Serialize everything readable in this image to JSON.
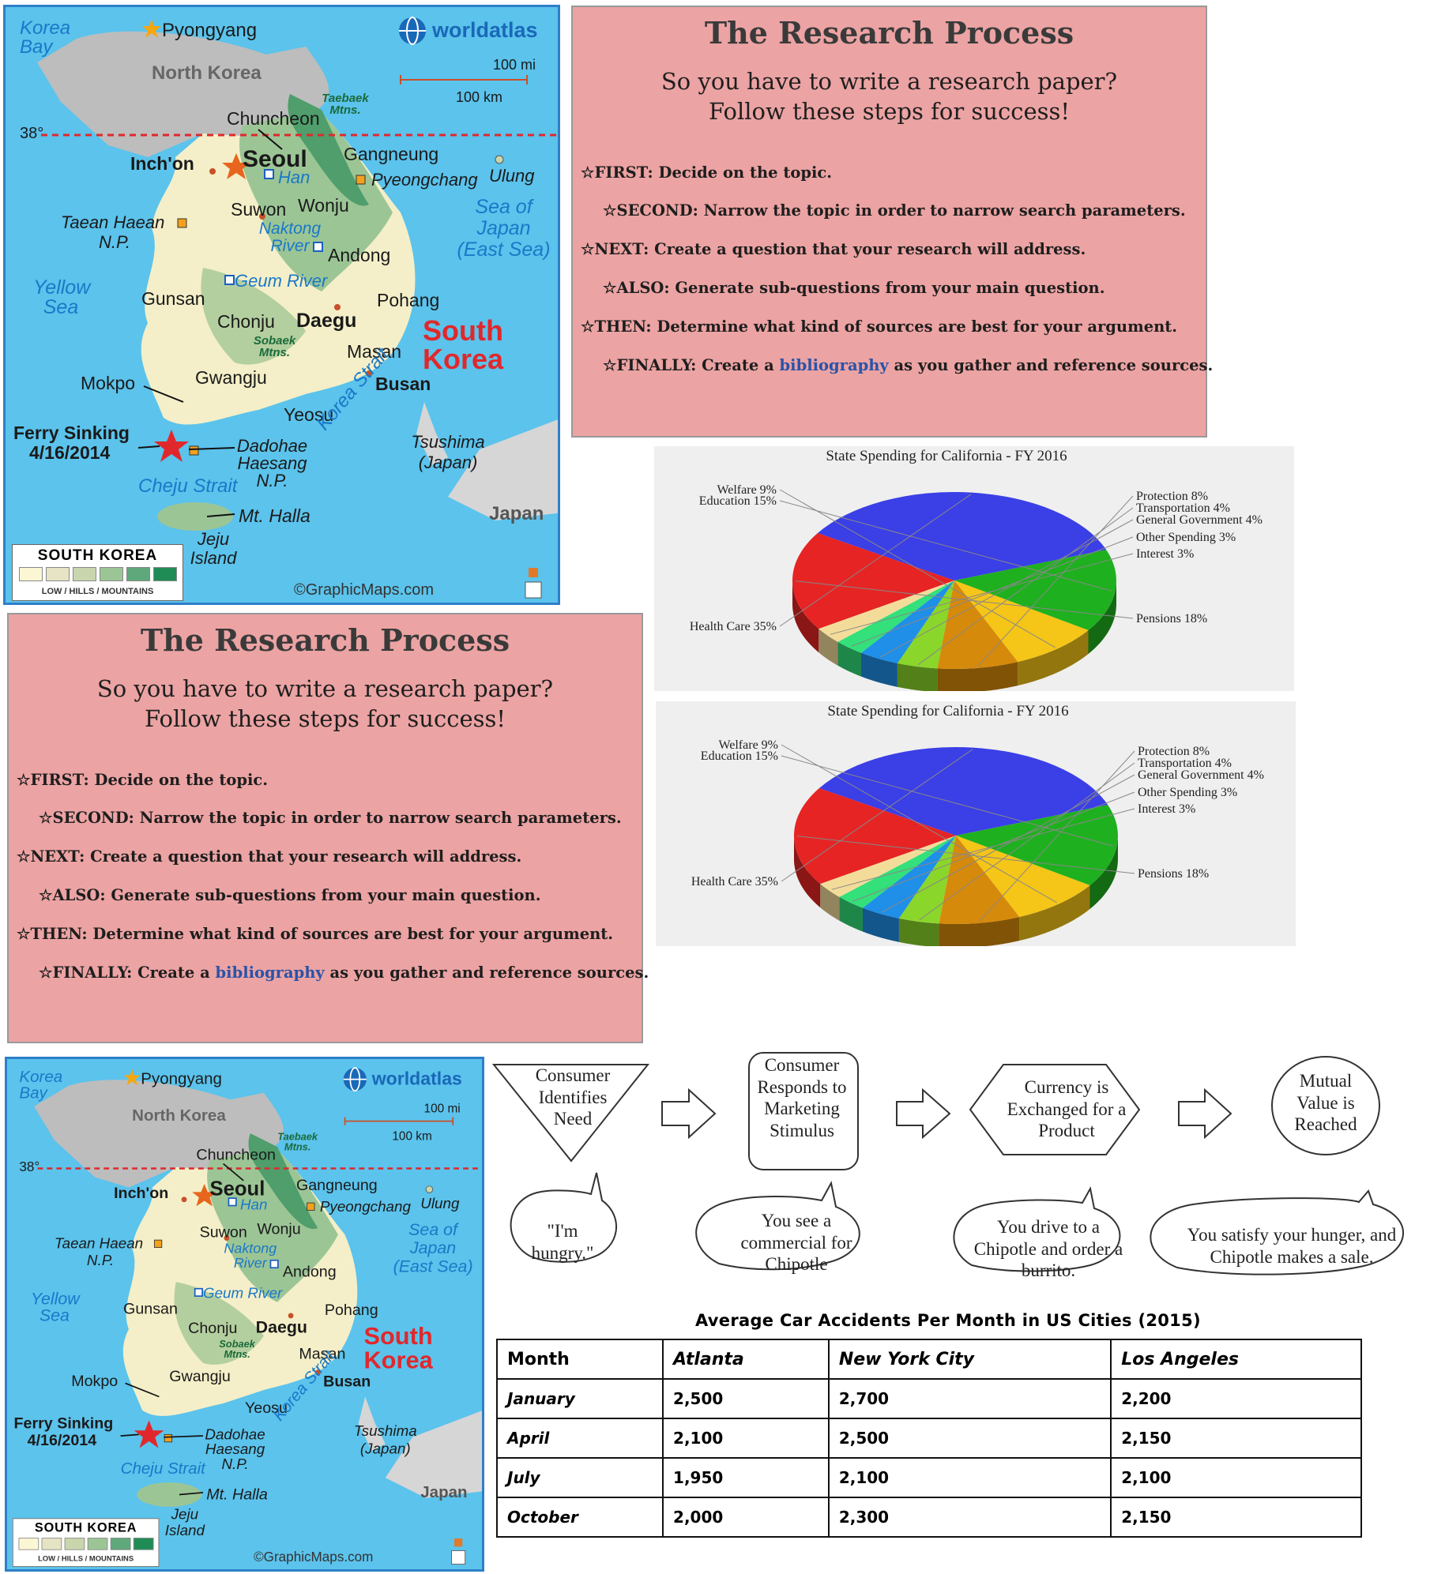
{
  "map": {
    "brand": "worldatlas",
    "copyright": "©GraphicMaps.com",
    "scale_mi": "100 mi",
    "scale_km": "100 km",
    "parallel": "38°",
    "country_label": [
      "South",
      "Korea"
    ],
    "labels": {
      "korea_bay": "Korea Bay",
      "pyongyang": "Pyongyang",
      "north_korea": "North Korea",
      "taebaek": "Taebaek Mtns.",
      "chuncheon": "Chuncheon",
      "incheon": "Inch'on",
      "seoul": "Seoul",
      "han": "Han",
      "gangneung": "Gangneung",
      "pyeongchang": "Pyeongchang",
      "ulung": "Ulung",
      "taean": "Taean Haean",
      "np": "N.P.",
      "suwon": "Suwon",
      "wonju": "Wonju",
      "naktong": "Naktong River",
      "andong": "Andong",
      "sea_of_japan": "Sea of Japan (East Sea)",
      "yellow_sea": "Yellow Sea",
      "gunsan": "Gunsan",
      "geum": "Geum River",
      "pohang": "Pohang",
      "chonju": "Chonju",
      "daegu": "Daegu",
      "sobaek": "Sobaek Mtns.",
      "masan": "Masan",
      "mokpo": "Mokpo",
      "gwangju": "Gwangju",
      "busan": "Busan",
      "yeosu": "Yeosu",
      "korea_strait": "Korea Strait",
      "ferry": "Ferry Sinking",
      "ferry_date": "4/16/2014",
      "dadohae": "Dadohae Haesang N.P.",
      "tsushima": "Tsushima (Japan)",
      "cheju": "Cheju Strait",
      "halla": "Mt. Halla",
      "jeju": "Jeju Island",
      "japan": "Japan"
    },
    "legend_title": "SOUTH KOREA",
    "legend_scale": "LOW / HILLS / MOUNTAINS",
    "legend_colors": [
      "#fbf6d4",
      "#e6e4c4",
      "#c9d6ad",
      "#9cc596",
      "#5fa87b",
      "#1f8c55"
    ]
  },
  "slide": {
    "title": "The Research Process",
    "subtitle_1": "So you have to write a research paper?",
    "subtitle_2": "Follow these steps for success!",
    "star": "☆",
    "steps": [
      {
        "label": "FIRST:",
        "text": "Decide on the topic."
      },
      {
        "label": "SECOND:",
        "text": "Narrow the topic in order to narrow search parameters."
      },
      {
        "label": "NEXT:",
        "text": "Create a question that your research will address."
      },
      {
        "label": "ALSO:",
        "text": "Generate sub-questions from your main question."
      },
      {
        "label": "THEN:",
        "text": "Determine what kind of sources are best for your argument."
      },
      {
        "label": "FINALLY:",
        "text_before": "Create a",
        "link": "bibliography",
        "text_after": "as you gather and reference sources."
      }
    ]
  },
  "chart_data": [
    {
      "type": "pie",
      "title": "State Spending for California - FY 2016",
      "slices": [
        {
          "label": "Health Care 35%",
          "value": 35,
          "color": "#3b3fe6"
        },
        {
          "label": "Education 15%",
          "value": 15,
          "color": "#1fb01f"
        },
        {
          "label": "Welfare 9%",
          "value": 9,
          "color": "#f5c518"
        },
        {
          "label": "Protection 8%",
          "value": 8,
          "color": "#d68a0b"
        },
        {
          "label": "Transportation 4%",
          "value": 4,
          "color": "#8bd62a"
        },
        {
          "label": "General Government 4%",
          "value": 4,
          "color": "#1f8fe8"
        },
        {
          "label": "Other Spending 3%",
          "value": 3,
          "color": "#33e07a"
        },
        {
          "label": "Interest 3%",
          "value": 3,
          "color": "#f3dc9a"
        },
        {
          "label": "Pensions 18%",
          "value": 18,
          "color": "#e62424"
        }
      ]
    },
    {
      "type": "pie",
      "title": "State Spending for California - FY 2016",
      "slices": [
        {
          "label": "Health Care 35%",
          "value": 35,
          "color": "#3b3fe6"
        },
        {
          "label": "Education 15%",
          "value": 15,
          "color": "#1fb01f"
        },
        {
          "label": "Welfare 9%",
          "value": 9,
          "color": "#f5c518"
        },
        {
          "label": "Protection 8%",
          "value": 8,
          "color": "#d68a0b"
        },
        {
          "label": "Transportation 4%",
          "value": 4,
          "color": "#8bd62a"
        },
        {
          "label": "General Government 4%",
          "value": 4,
          "color": "#1f8fe8"
        },
        {
          "label": "Other Spending 3%",
          "value": 3,
          "color": "#33e07a"
        },
        {
          "label": "Interest 3%",
          "value": 3,
          "color": "#f3dc9a"
        },
        {
          "label": "Pensions 18%",
          "value": 18,
          "color": "#e62424"
        }
      ]
    }
  ],
  "flow": {
    "steps": [
      "Consumer Identifies Need",
      "Consumer Responds to Marketing Stimulus",
      "Currency is Exchanged for a Product",
      "Mutual Value is Reached"
    ],
    "bubbles": [
      "\"I'm hungry.\"",
      "You see a commercial for Chipotle",
      "You drive to a Chipotle and order a burrito.",
      "You satisfy your hunger, and Chipotle makes a sale."
    ]
  },
  "table": {
    "title": "Average Car Accidents Per Month in US Cities (2015)",
    "headers": [
      "Month",
      "Atlanta",
      "New York City",
      "Los Angeles"
    ],
    "rows": [
      [
        "January",
        "2,500",
        "2,700",
        "2,200"
      ],
      [
        "April",
        "2,100",
        "2,500",
        "2,150"
      ],
      [
        "July",
        "1,950",
        "2,100",
        "2,100"
      ],
      [
        "October",
        "2,000",
        "2,300",
        "2,150"
      ]
    ]
  }
}
